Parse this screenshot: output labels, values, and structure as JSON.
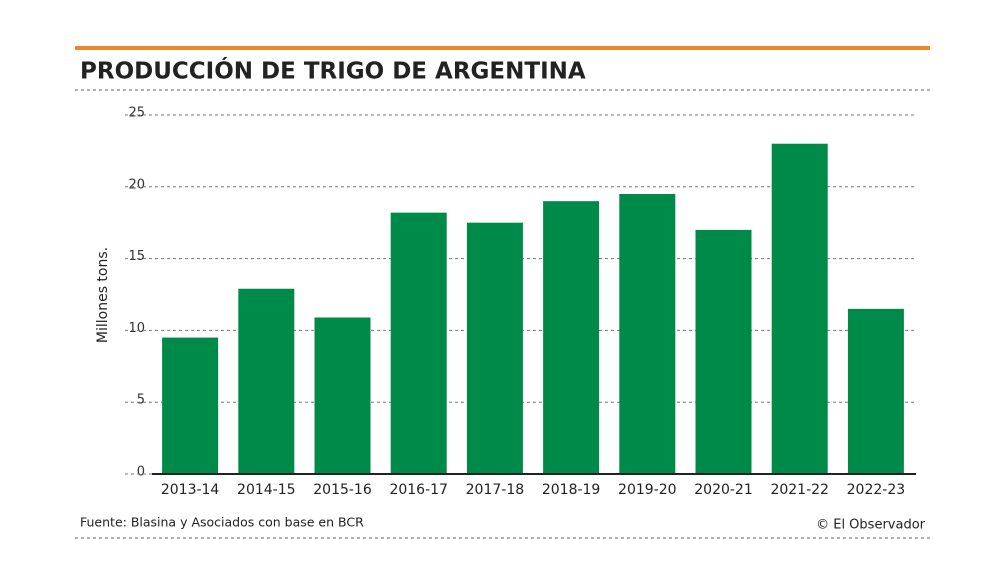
{
  "chart_data": {
    "type": "bar",
    "title": "PRODUCCIÓN DE TRIGO DE ARGENTINA",
    "y_label": "Millones tons.",
    "categories": [
      "2013-14",
      "2014-15",
      "2015-16",
      "2016-17",
      "2017-18",
      "2018-19",
      "2019-20",
      "2020-21",
      "2021-22",
      "2022-23"
    ],
    "values": [
      9.5,
      12.9,
      10.9,
      18.2,
      17.5,
      19.0,
      19.5,
      17.0,
      23.0,
      11.5
    ],
    "color": "#008a4a",
    "ylim": [
      0,
      25
    ],
    "yticks": [
      0,
      5,
      10,
      15,
      20,
      25
    ],
    "grid": true,
    "source": "Fuente: Blasina y Asociados con base en BCR",
    "credit": "© El Observador"
  }
}
